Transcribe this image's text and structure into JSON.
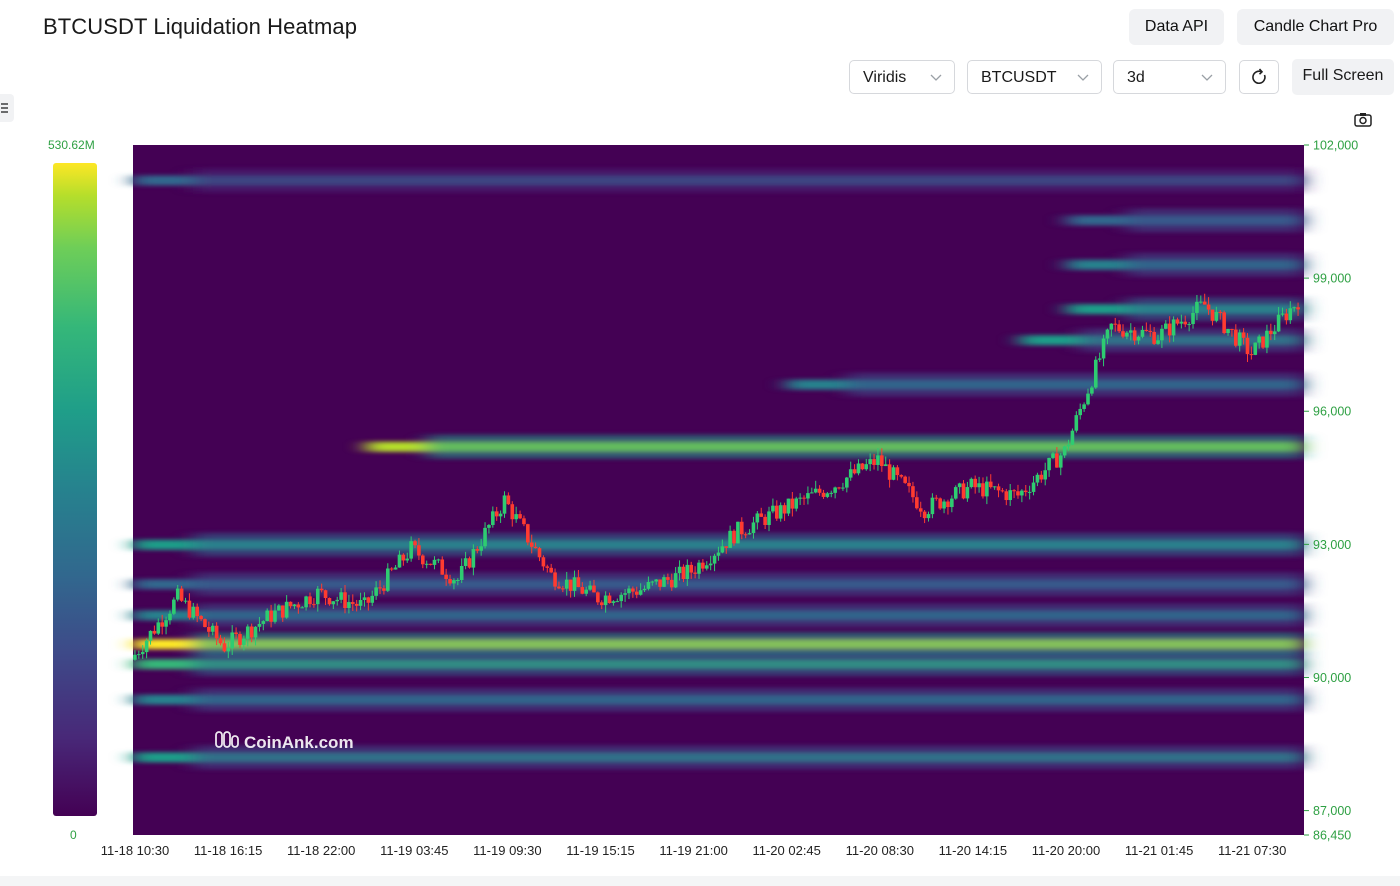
{
  "header": {
    "title": "BTCUSDT Liquidation Heatmap",
    "data_api_label": "Data API",
    "candle_chart_label": "Candle Chart Pro"
  },
  "controls": {
    "colorscale_value": "Viridis",
    "symbol_value": "BTCUSDT",
    "range_value": "3d",
    "fullscreen_label": "Full Screen",
    "icons": [
      "refresh-icon",
      "camera-icon",
      "menu-icon",
      "chevron-down-icon"
    ]
  },
  "legend": {
    "max_label": "530.62M",
    "min_label": "0",
    "colorscale": "Viridis"
  },
  "watermark": "CoinAnk.com",
  "colors": {
    "up": "#2ecc71",
    "down": "#ff3b30",
    "axis_text": "#2ea043",
    "heat_low": "#440154",
    "heat_high": "#fde725"
  },
  "chart_data": {
    "type": "heatmap",
    "title": "BTCUSDT Liquidation Heatmap",
    "x_tick_labels": [
      "11-18 10:30",
      "11-18 16:15",
      "11-18 22:00",
      "11-19 03:45",
      "11-19 09:30",
      "11-19 15:15",
      "11-19 21:00",
      "11-20 02:45",
      "11-20 08:30",
      "11-20 14:15",
      "11-20 20:00",
      "11-21 01:45",
      "11-21 07:30"
    ],
    "y_tick_labels": [
      "102,000",
      "99,000",
      "96,000",
      "93,000",
      "90,000",
      "87,000",
      "86,450"
    ],
    "y_tick_values": [
      102000,
      99000,
      96000,
      93000,
      90000,
      87000,
      86450
    ],
    "ylim": [
      86450,
      102000
    ],
    "color_range": [
      0,
      530.62
    ],
    "color_unit": "M",
    "price_series": {
      "type": "candlestick",
      "x": [
        "11-18 10:30",
        "11-18 13:00",
        "11-18 16:15",
        "11-18 19:00",
        "11-18 22:00",
        "11-19 01:00",
        "11-19 03:45",
        "11-19 06:30",
        "11-19 09:30",
        "11-19 12:30",
        "11-19 15:15",
        "11-19 18:00",
        "11-19 21:00",
        "11-20 00:00",
        "11-20 02:45",
        "11-20 05:45",
        "11-20 08:30",
        "11-20 11:30",
        "11-20 14:15",
        "11-20 17:15",
        "11-20 20:00",
        "11-20 23:00",
        "11-21 01:45",
        "11-21 04:45",
        "11-21 07:30",
        "11-21 09:40"
      ],
      "close": [
        90400,
        91800,
        90700,
        91400,
        91900,
        91600,
        92900,
        92200,
        94000,
        92300,
        91800,
        92000,
        92400,
        93300,
        93800,
        94300,
        94900,
        93800,
        94300,
        94100,
        95100,
        97900,
        97700,
        98400,
        97300,
        98500
      ]
    },
    "heat_bands": [
      {
        "price": 90750,
        "intensity": 0.95
      },
      {
        "price": 90300,
        "intensity": 0.7
      },
      {
        "price": 95200,
        "intensity": 0.92
      },
      {
        "price": 92990,
        "intensity": 0.6
      },
      {
        "price": 88200,
        "intensity": 0.5
      },
      {
        "price": 89500,
        "intensity": 0.45
      },
      {
        "price": 91400,
        "intensity": 0.4
      },
      {
        "price": 92100,
        "intensity": 0.35
      },
      {
        "price": 96600,
        "intensity": 0.45
      },
      {
        "price": 97600,
        "intensity": 0.5
      },
      {
        "price": 98300,
        "intensity": 0.55
      },
      {
        "price": 99300,
        "intensity": 0.4
      },
      {
        "price": 100300,
        "intensity": 0.35
      },
      {
        "price": 101200,
        "intensity": 0.3
      }
    ]
  }
}
